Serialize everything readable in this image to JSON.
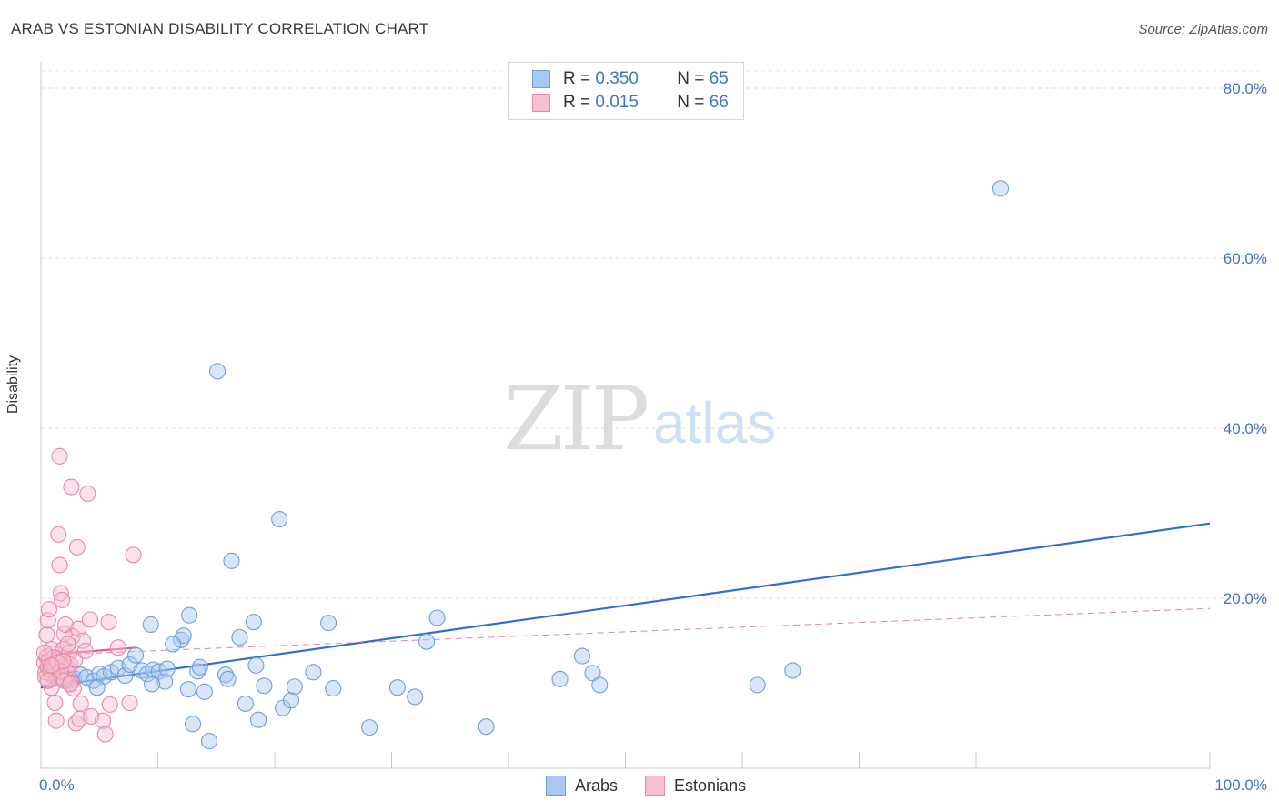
{
  "title": "ARAB VS ESTONIAN DISABILITY CORRELATION CHART",
  "source": "Source: ZipAtlas.com",
  "watermark": {
    "zip": "ZIP",
    "atlas": "atlas"
  },
  "legend": {
    "rows": [
      {
        "r_label": "R =",
        "r_value": "0.350",
        "n_label": "N =",
        "n_value": "65",
        "color": "#a8c8f0",
        "border": "#6f9fde"
      },
      {
        "r_label": "R =",
        "r_value": "0.015",
        "n_label": "N =",
        "n_value": "66",
        "color": "#f7bfd0",
        "border": "#e888a6"
      }
    ]
  },
  "bottom_legend": [
    {
      "label": "Arabs",
      "color": "#a8c8f0",
      "border": "#6f9fde"
    },
    {
      "label": "Estonians",
      "color": "#f7bfd0",
      "border": "#e888a6"
    }
  ],
  "chart_data": {
    "type": "scatter",
    "title": "ARAB VS ESTONIAN DISABILITY CORRELATION CHART",
    "xlabel": "",
    "ylabel": "Disability",
    "xlim": [
      0,
      100
    ],
    "ylim": [
      0,
      85
    ],
    "x_tick_labels": [
      "0.0%",
      "100.0%"
    ],
    "y_ticks": [
      20,
      40,
      60,
      80
    ],
    "y_tick_labels": [
      "20.0%",
      "40.0%",
      "60.0%",
      "80.0%"
    ],
    "grid": true,
    "series": [
      {
        "name": "Arabs",
        "color": "#6f9fde",
        "fill": "#a8c8f0",
        "trend": {
          "x": [
            0,
            100
          ],
          "y": [
            9.5,
            28.8
          ],
          "style": "solid",
          "color": "#2f6fd0"
        },
        "points": [
          [
            1.2,
            11.2
          ],
          [
            1.8,
            10.5
          ],
          [
            2.3,
            11.8
          ],
          [
            2.8,
            10.6
          ],
          [
            3.4,
            11.0
          ],
          [
            3.9,
            10.7
          ],
          [
            4.5,
            10.3
          ],
          [
            5.0,
            11.1
          ],
          [
            5.4,
            10.8
          ],
          [
            4.8,
            9.5
          ],
          [
            6.0,
            11.3
          ],
          [
            6.6,
            11.8
          ],
          [
            7.2,
            10.9
          ],
          [
            7.6,
            12.2
          ],
          [
            8.1,
            13.3
          ],
          [
            8.6,
            11.5
          ],
          [
            9.1,
            11.1
          ],
          [
            9.6,
            11.6
          ],
          [
            10.1,
            11.4
          ],
          [
            10.6,
            10.2
          ],
          [
            10.8,
            11.7
          ],
          [
            12.0,
            15.1
          ],
          [
            12.2,
            15.6
          ],
          [
            11.3,
            14.6
          ],
          [
            12.6,
            9.3
          ],
          [
            12.7,
            18.0
          ],
          [
            9.5,
            9.9
          ],
          [
            9.4,
            16.9
          ],
          [
            13.4,
            11.4
          ],
          [
            13.6,
            11.9
          ],
          [
            14.0,
            9.0
          ],
          [
            13.0,
            5.2
          ],
          [
            14.4,
            3.2
          ],
          [
            15.1,
            46.7
          ],
          [
            15.8,
            11.0
          ],
          [
            16.0,
            10.5
          ],
          [
            16.3,
            24.4
          ],
          [
            17.0,
            15.4
          ],
          [
            17.5,
            7.6
          ],
          [
            18.2,
            17.2
          ],
          [
            18.4,
            12.1
          ],
          [
            18.6,
            5.7
          ],
          [
            19.1,
            9.7
          ],
          [
            20.4,
            29.3
          ],
          [
            20.7,
            7.1
          ],
          [
            21.4,
            8.0
          ],
          [
            21.7,
            9.6
          ],
          [
            23.3,
            11.3
          ],
          [
            24.6,
            17.1
          ],
          [
            25.0,
            9.4
          ],
          [
            28.1,
            4.8
          ],
          [
            30.5,
            9.5
          ],
          [
            32.0,
            8.4
          ],
          [
            33.0,
            14.9
          ],
          [
            33.9,
            17.7
          ],
          [
            38.1,
            4.9
          ],
          [
            44.4,
            10.5
          ],
          [
            46.3,
            13.2
          ],
          [
            47.2,
            11.2
          ],
          [
            47.8,
            9.8
          ],
          [
            61.3,
            9.8
          ],
          [
            64.3,
            11.5
          ],
          [
            82.1,
            68.2
          ],
          [
            1.6,
            10.8
          ],
          [
            2.6,
            10.4
          ]
        ]
      },
      {
        "name": "Estonians",
        "color": "#e888a6",
        "fill": "#f7bfd0",
        "trend": {
          "x": [
            0,
            8.2
          ],
          "y": [
            13.3,
            14.2
          ],
          "style": "solid",
          "color": "#e0608a",
          "extended": {
            "x": [
              0,
              100
            ],
            "y": [
              13.3,
              18.8
            ],
            "style": "dashed"
          }
        },
        "points": [
          [
            0.3,
            12.4
          ],
          [
            0.4,
            11.3
          ],
          [
            0.5,
            13.1
          ],
          [
            0.6,
            11.9
          ],
          [
            0.7,
            12.7
          ],
          [
            0.8,
            11.5
          ],
          [
            0.9,
            14.0
          ],
          [
            1.0,
            10.9
          ],
          [
            1.1,
            12.2
          ],
          [
            0.5,
            15.7
          ],
          [
            0.6,
            17.4
          ],
          [
            0.7,
            18.7
          ],
          [
            0.9,
            9.5
          ],
          [
            1.0,
            13.5
          ],
          [
            1.2,
            12.0
          ],
          [
            1.3,
            11.0
          ],
          [
            1.4,
            10.6
          ],
          [
            1.5,
            12.9
          ],
          [
            1.5,
            27.5
          ],
          [
            1.6,
            23.9
          ],
          [
            1.7,
            20.6
          ],
          [
            1.8,
            19.8
          ],
          [
            1.6,
            36.7
          ],
          [
            1.9,
            14.0
          ],
          [
            2.0,
            15.8
          ],
          [
            2.1,
            16.9
          ],
          [
            2.2,
            11.6
          ],
          [
            2.3,
            11.1
          ],
          [
            2.4,
            13.6
          ],
          [
            2.5,
            12.2
          ],
          [
            2.6,
            10.1
          ],
          [
            2.7,
            15.5
          ],
          [
            2.8,
            9.4
          ],
          [
            2.9,
            12.8
          ],
          [
            2.6,
            33.1
          ],
          [
            3.0,
            5.3
          ],
          [
            3.1,
            26.0
          ],
          [
            3.2,
            16.4
          ],
          [
            3.3,
            5.8
          ],
          [
            3.4,
            7.6
          ],
          [
            3.6,
            15.0
          ],
          [
            3.8,
            13.8
          ],
          [
            4.0,
            32.3
          ],
          [
            4.2,
            17.5
          ],
          [
            4.3,
            6.1
          ],
          [
            1.2,
            7.7
          ],
          [
            1.3,
            5.6
          ],
          [
            5.3,
            5.6
          ],
          [
            5.5,
            4.0
          ],
          [
            5.8,
            17.2
          ],
          [
            5.9,
            7.5
          ],
          [
            6.6,
            14.2
          ],
          [
            7.6,
            7.7
          ],
          [
            7.9,
            25.1
          ],
          [
            0.4,
            10.7
          ],
          [
            0.8,
            11.7
          ],
          [
            1.1,
            13.0
          ],
          [
            1.4,
            12.4
          ],
          [
            1.7,
            11.4
          ],
          [
            2.0,
            10.3
          ],
          [
            2.3,
            14.6
          ],
          [
            0.3,
            13.6
          ],
          [
            0.6,
            10.3
          ],
          [
            1.9,
            12.6
          ],
          [
            2.5,
            9.9
          ],
          [
            0.9,
            12.1
          ]
        ]
      }
    ]
  }
}
